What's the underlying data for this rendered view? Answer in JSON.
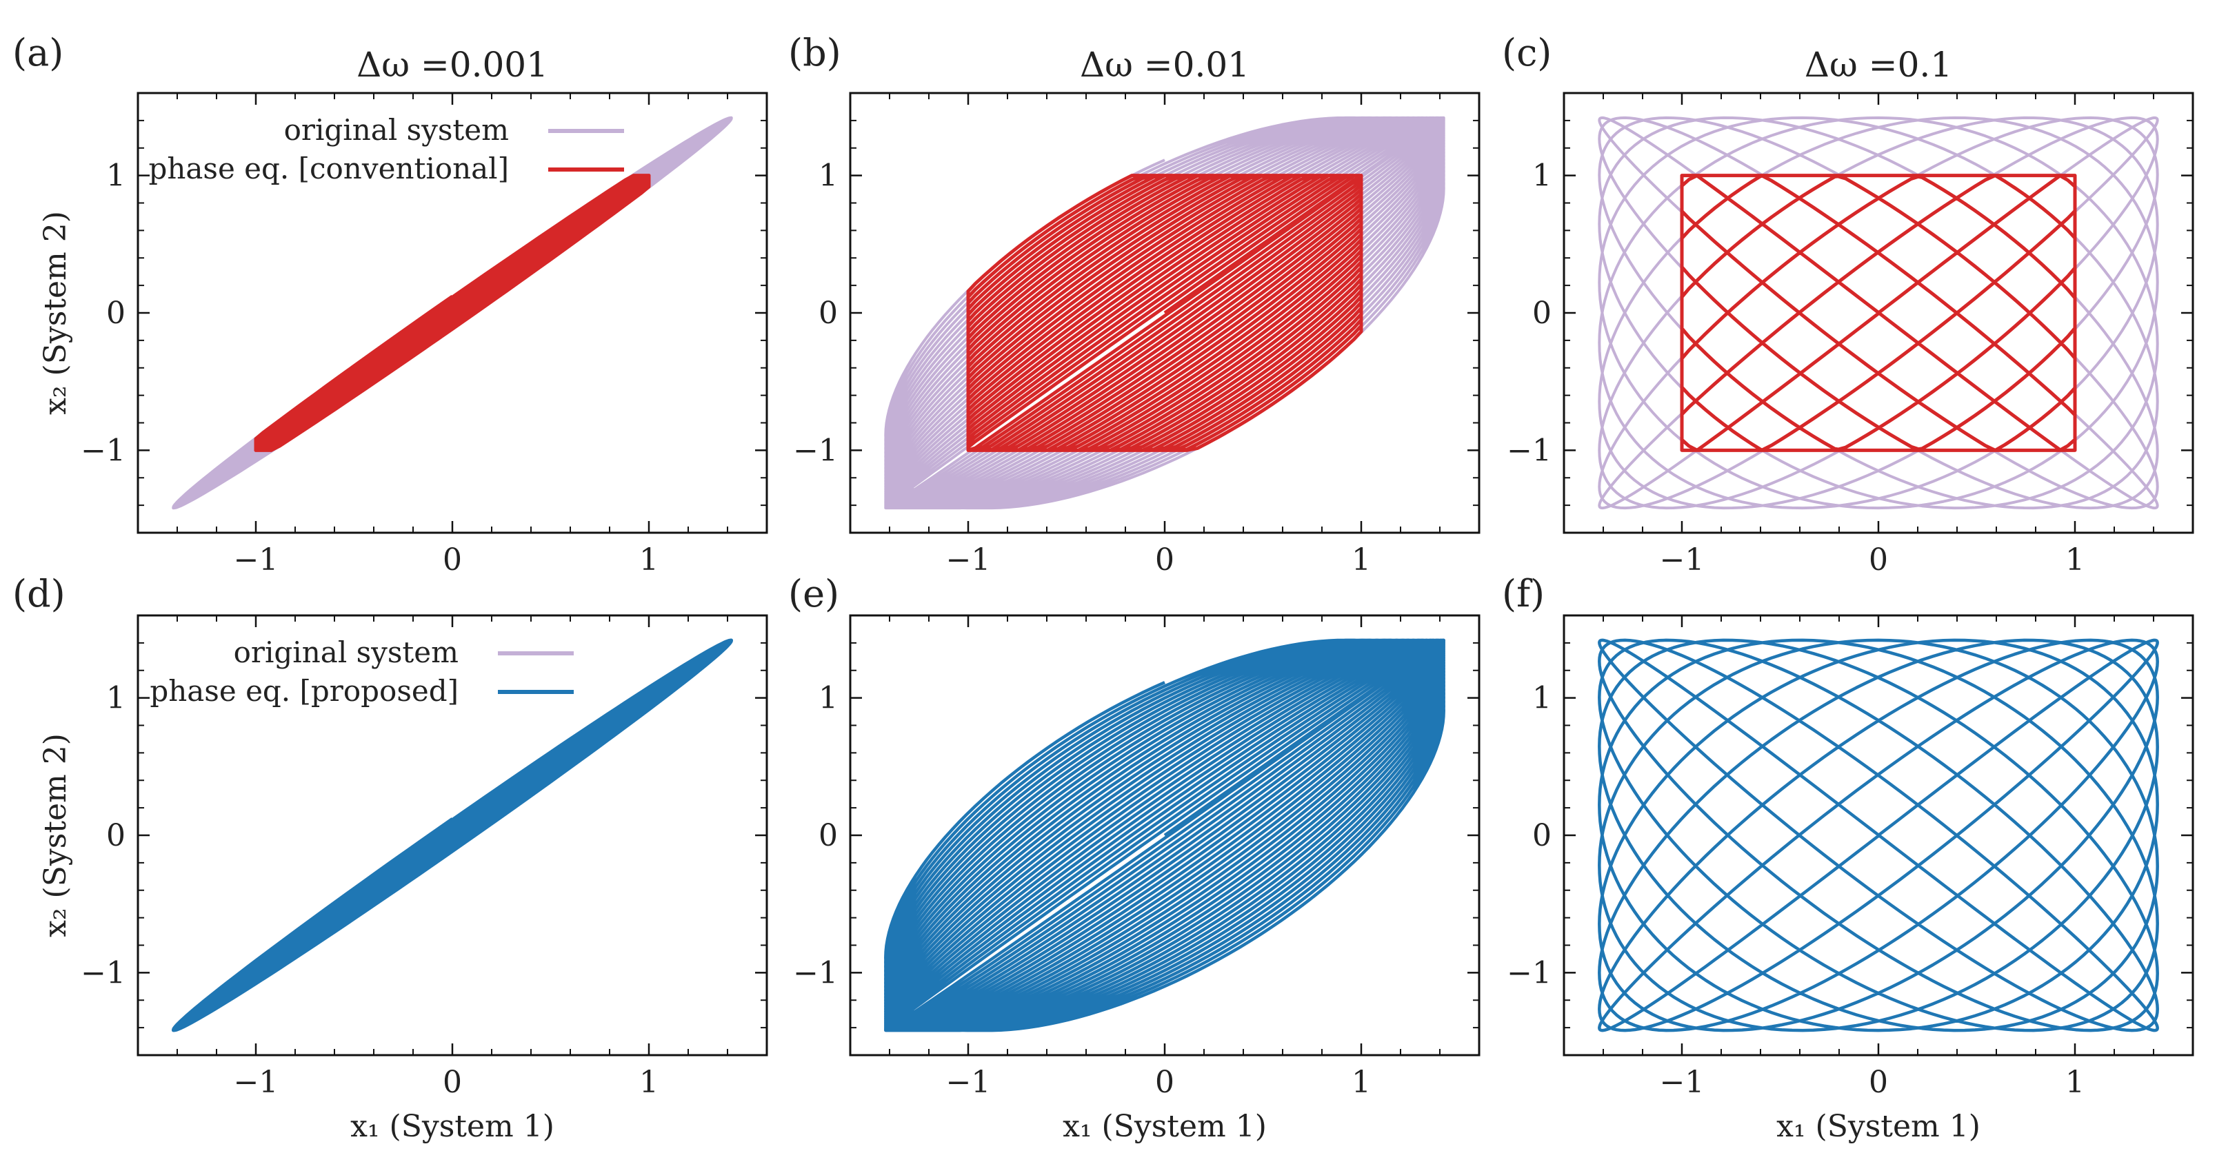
{
  "chart_data": [
    {
      "type": "line",
      "panel": "(a)",
      "title": "Δω =0.001",
      "xlabel": "",
      "ylabel": "x₂ (System 2)",
      "xlim": [
        -1.6,
        1.6
      ],
      "ylim": [
        -1.6,
        1.6
      ],
      "xticks": [
        -1,
        0,
        1
      ],
      "yticks": [
        -1,
        0,
        1
      ],
      "tick_labels": [
        "−1",
        "0",
        "1"
      ],
      "legend": {
        "placement": "top-left",
        "entries": [
          "original system",
          "phase eq. [conventional]"
        ]
      },
      "series": [
        {
          "name": "original system",
          "color": "#c4b0d6",
          "amplitude": 1.42,
          "clip": false,
          "dphi": 0.001,
          "phase_range": [
            0.0,
            0.085
          ],
          "cycles": 20
        },
        {
          "name": "phase eq. [conventional]",
          "color": "#d62728",
          "amplitude": 1.42,
          "clip": true,
          "dphi": 0.001,
          "phase_range": [
            0.0,
            0.085
          ],
          "cycles": 20
        }
      ]
    },
    {
      "type": "line",
      "panel": "(b)",
      "title": "Δω =0.01",
      "xlabel": "",
      "ylabel": "",
      "xlim": [
        -1.6,
        1.6
      ],
      "ylim": [
        -1.6,
        1.6
      ],
      "xticks": [
        -1,
        0,
        1
      ],
      "yticks": [
        -1,
        0,
        1
      ],
      "tick_labels": [
        "−1",
        "0",
        "1"
      ],
      "series": [
        {
          "name": "original system",
          "color": "#c4b0d6",
          "amplitude": 1.42,
          "clip": false,
          "dphi": 0.01,
          "phase_range": [
            0.0,
            0.9
          ],
          "cycles": 30
        },
        {
          "name": "phase eq. [conventional]",
          "color": "#d62728",
          "amplitude": 1.42,
          "clip": true,
          "dphi": 0.01,
          "phase_range": [
            0.0,
            0.9
          ],
          "cycles": 30
        }
      ]
    },
    {
      "type": "line",
      "panel": "(c)",
      "title": "Δω =0.1",
      "xlabel": "",
      "ylabel": "",
      "xlim": [
        -1.6,
        1.6
      ],
      "ylim": [
        -1.6,
        1.6
      ],
      "xticks": [
        -1,
        0,
        1
      ],
      "yticks": [
        -1,
        0,
        1
      ],
      "tick_labels": [
        "−1",
        "0",
        "1"
      ],
      "series": [
        {
          "name": "original system",
          "color": "#c4b0d6",
          "amplitude": 1.42,
          "clip": false,
          "dphi": 0.1,
          "phase_range": [
            0.0,
            6.28
          ],
          "cycles": 10
        },
        {
          "name": "phase eq. [conventional]",
          "color": "#d62728",
          "amplitude": 1.42,
          "clip": true,
          "dphi": 0.1,
          "phase_range": [
            0.0,
            6.28
          ],
          "cycles": 10
        }
      ]
    },
    {
      "type": "line",
      "panel": "(d)",
      "title": "",
      "xlabel": "x₁ (System 1)",
      "ylabel": "x₂ (System 2)",
      "xlim": [
        -1.6,
        1.6
      ],
      "ylim": [
        -1.6,
        1.6
      ],
      "xticks": [
        -1,
        0,
        1
      ],
      "yticks": [
        -1,
        0,
        1
      ],
      "tick_labels": [
        "−1",
        "0",
        "1"
      ],
      "legend": {
        "placement": "top-left",
        "entries": [
          "original system",
          "phase eq. [proposed]"
        ]
      },
      "series": [
        {
          "name": "original system",
          "color": "#c4b0d6",
          "amplitude": 1.42,
          "clip": false,
          "dphi": 0.001,
          "phase_range": [
            0.0,
            0.085
          ],
          "cycles": 20
        },
        {
          "name": "phase eq. [proposed]",
          "color": "#1f77b4",
          "amplitude": 1.42,
          "clip": false,
          "dphi": 0.001,
          "phase_range": [
            0.0,
            0.085
          ],
          "cycles": 20
        }
      ]
    },
    {
      "type": "line",
      "panel": "(e)",
      "title": "",
      "xlabel": "x₁ (System 1)",
      "ylabel": "",
      "xlim": [
        -1.6,
        1.6
      ],
      "ylim": [
        -1.6,
        1.6
      ],
      "xticks": [
        -1,
        0,
        1
      ],
      "yticks": [
        -1,
        0,
        1
      ],
      "tick_labels": [
        "−1",
        "0",
        "1"
      ],
      "series": [
        {
          "name": "original system",
          "color": "#c4b0d6",
          "amplitude": 1.42,
          "clip": false,
          "dphi": 0.01,
          "phase_range": [
            0.0,
            0.9
          ],
          "cycles": 30
        },
        {
          "name": "phase eq. [proposed]",
          "color": "#1f77b4",
          "amplitude": 1.42,
          "clip": false,
          "dphi": 0.01,
          "phase_range": [
            0.0,
            0.9
          ],
          "cycles": 30
        }
      ]
    },
    {
      "type": "line",
      "panel": "(f)",
      "title": "",
      "xlabel": "x₁ (System 1)",
      "ylabel": "",
      "xlim": [
        -1.6,
        1.6
      ],
      "ylim": [
        -1.6,
        1.6
      ],
      "xticks": [
        -1,
        0,
        1
      ],
      "yticks": [
        -1,
        0,
        1
      ],
      "tick_labels": [
        "−1",
        "0",
        "1"
      ],
      "series": [
        {
          "name": "original system",
          "color": "#c4b0d6",
          "amplitude": 1.42,
          "clip": false,
          "dphi": 0.1,
          "phase_range": [
            0.0,
            6.28
          ],
          "cycles": 10
        },
        {
          "name": "phase eq. [proposed]",
          "color": "#1f77b4",
          "amplitude": 1.42,
          "clip": false,
          "dphi": 0.1,
          "phase_range": [
            0.0,
            6.28
          ],
          "cycles": 10
        }
      ]
    }
  ]
}
